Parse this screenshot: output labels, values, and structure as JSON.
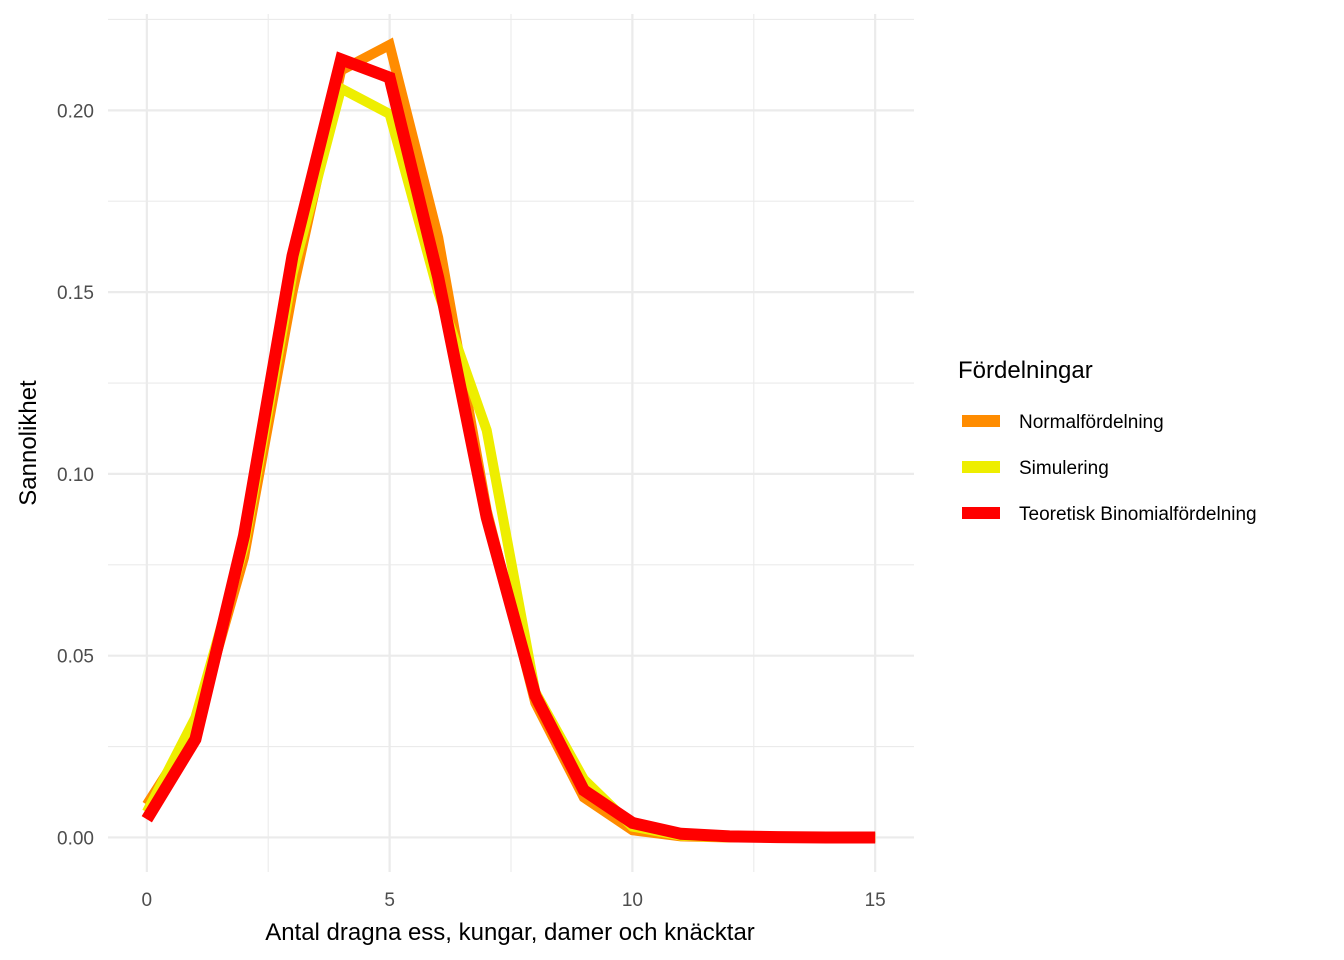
{
  "chart_data": {
    "type": "line",
    "title": "",
    "xlabel": "Antal dragna ess, kungar, damer och knäcktar",
    "ylabel": "Sannolikhet",
    "xlim": [
      -0.8,
      15.8
    ],
    "ylim": [
      -0.0095,
      0.2265
    ],
    "x_ticks": [
      0,
      5,
      10,
      15
    ],
    "x_tick_labels": [
      "0",
      "5",
      "10",
      "15"
    ],
    "x_minor_ticks": [
      2.5,
      7.5,
      12.5
    ],
    "y_ticks": [
      0.0,
      0.05,
      0.1,
      0.15,
      0.2
    ],
    "y_tick_labels": [
      "0.00",
      "0.05",
      "0.10",
      "0.15",
      "0.20"
    ],
    "y_minor_ticks": [
      0.025,
      0.075,
      0.125,
      0.175,
      0.225
    ],
    "grid": true,
    "legend": {
      "title": "Fördelningar",
      "placement": "right"
    },
    "x": [
      0,
      1,
      2,
      3,
      4,
      5,
      6,
      7,
      8,
      9,
      10,
      11,
      12,
      13,
      14,
      15
    ],
    "series": [
      {
        "name": "Normalfördelning",
        "color": "#FF8C00",
        "values": [
          0.009,
          0.03,
          0.077,
          0.15,
          0.211,
          0.218,
          0.165,
          0.09,
          0.037,
          0.011,
          0.002,
          0.0003,
          0.0,
          0.0,
          0.0,
          0.0
        ]
      },
      {
        "name": "Simulering",
        "color": "#EEEE00",
        "values": [
          0.007,
          0.033,
          0.08,
          0.155,
          0.206,
          0.199,
          0.15,
          0.112,
          0.04,
          0.016,
          0.003,
          0.0005,
          0.0,
          0.0,
          0.0,
          0.0
        ]
      },
      {
        "name": "Teoretisk Binomialfördelning",
        "color": "#FF0000",
        "values": [
          0.005,
          0.027,
          0.083,
          0.16,
          0.214,
          0.209,
          0.154,
          0.088,
          0.039,
          0.013,
          0.004,
          0.001,
          0.0003,
          0.0001,
          0.0,
          0.0
        ]
      }
    ]
  }
}
